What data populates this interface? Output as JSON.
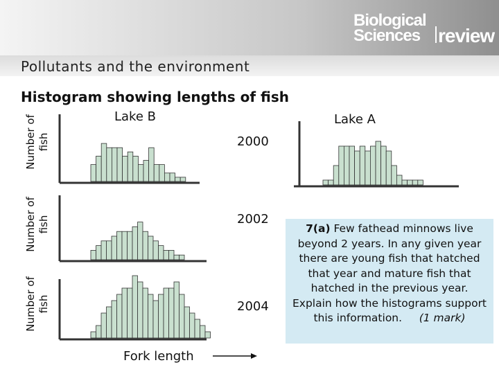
{
  "header": {
    "logo_line1": "Biological",
    "logo_line2": "Sciences",
    "logo_review": "review"
  },
  "band": {
    "title": "Pollutants and the environment"
  },
  "colors": {
    "bar_fill": "#c9e0cf",
    "bar_stroke": "#333333",
    "question_bg": "#d4eaf3"
  },
  "chart_data": {
    "type": "bar",
    "title": "Histogram showing lengths of fish",
    "xlabel": "Fork length",
    "ylabel": "Number of fish",
    "columns": [
      "Lake B",
      "Lake A"
    ],
    "rows": [
      "2000",
      "2002",
      "2004"
    ],
    "panels": [
      {
        "lake": "Lake B",
        "year": "2000",
        "values": [
          4,
          6,
          9,
          8,
          8,
          8,
          6,
          7,
          6,
          4,
          5,
          8,
          4,
          4,
          2,
          2,
          1,
          1
        ]
      },
      {
        "lake": "Lake A",
        "year": "2000",
        "values": [
          1,
          1,
          4,
          8,
          8,
          8,
          7,
          8,
          7,
          8,
          9,
          8,
          7,
          4,
          2,
          1,
          1,
          1,
          1
        ]
      },
      {
        "lake": "Lake B",
        "year": "2002",
        "values": [
          2,
          3,
          4,
          4,
          5,
          6,
          6,
          6,
          7,
          8,
          6,
          5,
          4,
          3,
          2,
          2,
          1,
          1,
          0
        ]
      },
      {
        "lake": "Lake B",
        "year": "2004",
        "values": [
          1,
          2,
          4,
          5,
          6,
          7,
          8,
          8,
          10,
          9,
          8,
          7,
          6,
          7,
          8,
          8,
          9,
          7,
          5,
          4,
          3,
          2,
          1,
          0
        ]
      }
    ]
  },
  "question": {
    "number": "7(a)",
    "text": " Few fathead minnows live beyond 2 years. In any given year there are young fish that hatched that year and mature fish that hatched in the previous year. Explain how the histograms support this information.",
    "marks": "(1 mark)"
  }
}
